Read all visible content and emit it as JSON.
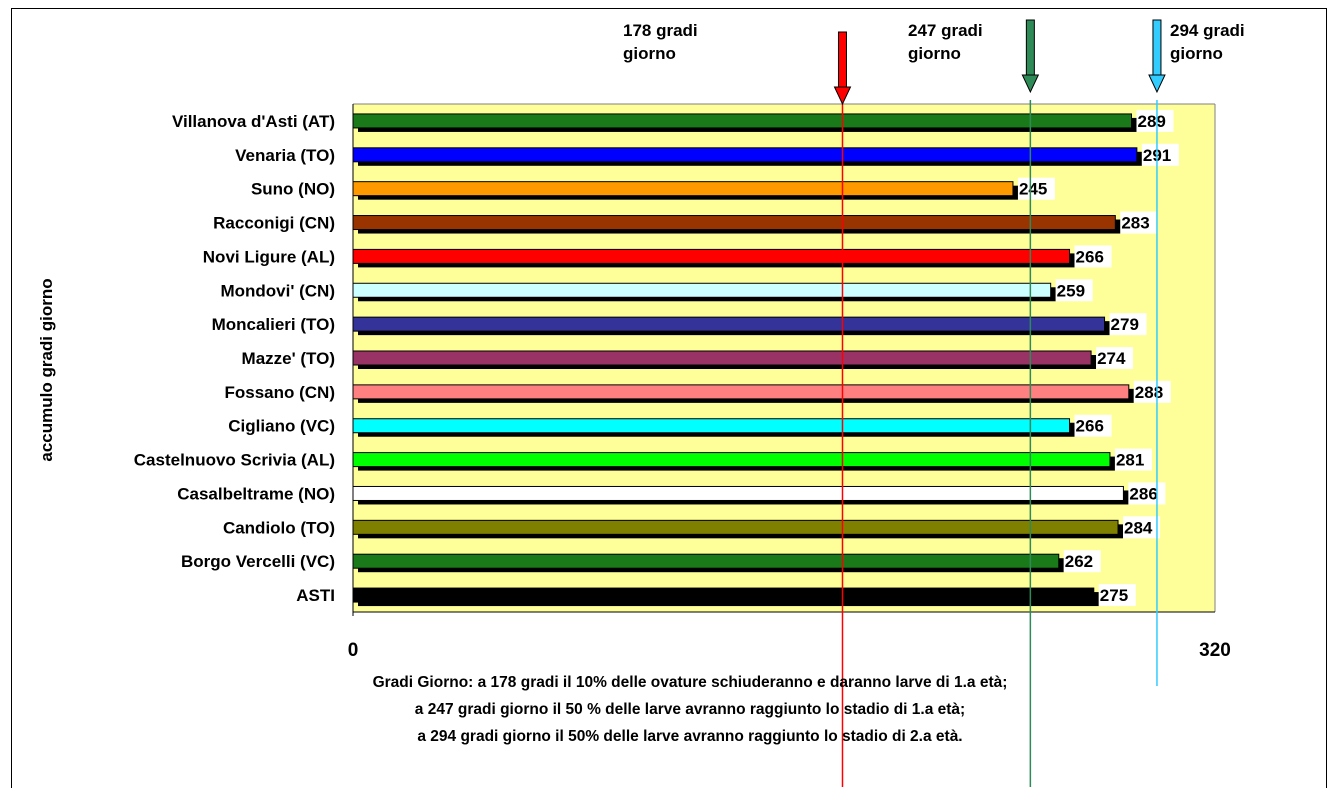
{
  "chart_data": {
    "type": "bar",
    "orientation": "horizontal",
    "ylabel": "accumulo gradi giorno",
    "xlim": [
      0,
      320
    ],
    "x_ticks": [
      "0",
      "320"
    ],
    "categories": [
      "Villanova d'Asti (AT)",
      "Venaria (TO)",
      "Suno (NO)",
      "Racconigi (CN)",
      "Novi Ligure (AL)",
      "Mondovi' (CN)",
      "Moncalieri (TO)",
      "Mazze' (TO)",
      "Fossano (CN)",
      "Cigliano (VC)",
      "Castelnuovo Scrivia (AL)",
      "Casalbeltrame (NO)",
      "Candiolo (TO)",
      "Borgo Vercelli (VC)",
      "ASTI"
    ],
    "values": [
      289,
      291,
      245,
      283,
      266,
      259,
      279,
      274,
      288,
      266,
      281,
      286,
      284,
      262,
      275
    ],
    "value_labels": [
      "289",
      "291",
      "245",
      "283",
      "266",
      "259",
      "279",
      "274",
      "288",
      "266",
      "281",
      "286",
      "284",
      "262",
      "275"
    ],
    "bar_colors": [
      "#1a7a1a",
      "#0000ff",
      "#ff9900",
      "#993300",
      "#ff0000",
      "#ccffff",
      "#333399",
      "#993366",
      "#ff8080",
      "#00ffff",
      "#00ff00",
      "#ffffff",
      "#808000",
      "#1a7a1a",
      "#000000"
    ],
    "plot_background": "#ffff99",
    "thresholds": [
      {
        "value": 178,
        "label_lines": [
          "178 gradi",
          "giorno"
        ],
        "color": "#ff0000",
        "line_color": "#ff0000"
      },
      {
        "value": 247,
        "label_lines": [
          "247 gradi",
          "giorno"
        ],
        "color": "#2e8b57",
        "line_color": "#2e8b57"
      },
      {
        "value": 294,
        "label_lines": [
          "294 gradi",
          "giorno"
        ],
        "color": "#33ccff",
        "line_color": "#33ccff"
      }
    ],
    "caption_lines": [
      "Gradi Giorno: a 178 gradi il 10% delle ovature  schiuderanno e daranno larve di 1.a età;",
      "a 247  gradi giorno il 50 % delle larve avranno raggiunto lo stadio di 1.a età;",
      "a 294 gradi giorno il 50% delle larve avranno raggiunto  lo stadio di 2.a età."
    ]
  }
}
